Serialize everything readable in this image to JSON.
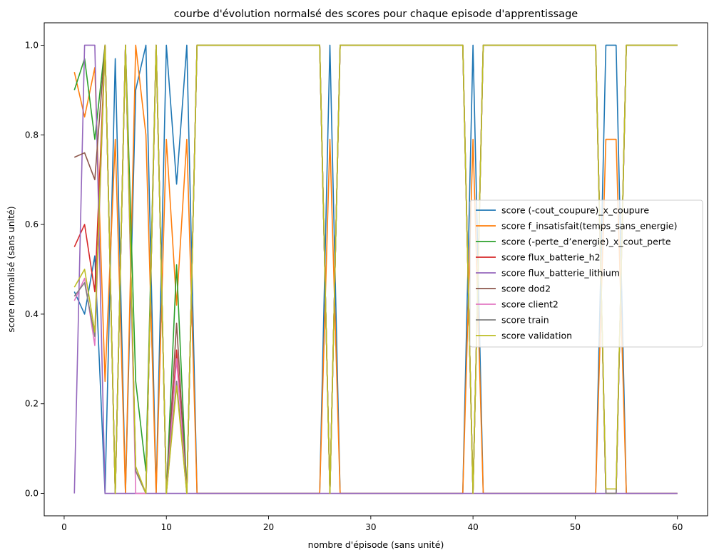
{
  "chart_data": {
    "type": "line",
    "title": "courbe d'évolution normalsé des scores pour chaque episode d'apprentissage",
    "xlabel": "nombre d'épisode (sans unité)",
    "ylabel": "score normalisé (sans unité)",
    "xlim": [
      -1.95,
      62.95
    ],
    "ylim": [
      -0.05,
      1.05
    ],
    "xticks": [
      0,
      10,
      20,
      30,
      40,
      50,
      60
    ],
    "yticks": [
      0.0,
      0.2,
      0.4,
      0.6,
      0.8,
      1.0
    ],
    "ytick_labels": [
      "0.0",
      "0.2",
      "0.4",
      "0.6",
      "0.8",
      "1.0"
    ],
    "grid": false,
    "legend_position": "center-right",
    "series": [
      {
        "name": "score (-cout_coupure)_x_coupure",
        "color": "#1f77b4",
        "points": [
          [
            1,
            0.45
          ],
          [
            2,
            0.4
          ],
          [
            3,
            0.53
          ],
          [
            4,
            0.0
          ],
          [
            5,
            0.97
          ],
          [
            6,
            0.0
          ],
          [
            7,
            0.9
          ],
          [
            8,
            1.0
          ],
          [
            9,
            0.0
          ],
          [
            10,
            1.0
          ],
          [
            11,
            0.69
          ],
          [
            12,
            1.0
          ],
          [
            13,
            0.0
          ],
          [
            25,
            0.0
          ],
          [
            26,
            1.0
          ],
          [
            27,
            0.0
          ],
          [
            39,
            0.0
          ],
          [
            40,
            1.0
          ],
          [
            41,
            0.0
          ],
          [
            52,
            0.0
          ],
          [
            53,
            1.0
          ],
          [
            54,
            1.0
          ],
          [
            55,
            0.0
          ],
          [
            60,
            0.0
          ]
        ]
      },
      {
        "name": "score f_insatisfait(temps_sans_energie)",
        "color": "#ff7f0e",
        "points": [
          [
            1,
            0.94
          ],
          [
            2,
            0.84
          ],
          [
            3,
            0.95
          ],
          [
            4,
            0.25
          ],
          [
            5,
            0.79
          ],
          [
            6,
            0.0
          ],
          [
            7,
            1.0
          ],
          [
            8,
            0.8
          ],
          [
            9,
            0.0
          ],
          [
            10,
            0.79
          ],
          [
            11,
            0.42
          ],
          [
            12,
            0.79
          ],
          [
            13,
            0.0
          ],
          [
            25,
            0.0
          ],
          [
            26,
            0.79
          ],
          [
            27,
            0.0
          ],
          [
            39,
            0.0
          ],
          [
            40,
            0.79
          ],
          [
            41,
            0.0
          ],
          [
            52,
            0.0
          ],
          [
            53,
            0.79
          ],
          [
            54,
            0.79
          ],
          [
            55,
            0.0
          ],
          [
            60,
            0.0
          ]
        ]
      },
      {
        "name": "score (-perte_d’energie)_x_cout_perte",
        "color": "#2ca02c",
        "points": [
          [
            1,
            0.9
          ],
          [
            2,
            0.97
          ],
          [
            3,
            0.79
          ],
          [
            4,
            1.0
          ],
          [
            5,
            0.0
          ],
          [
            6,
            1.0
          ],
          [
            7,
            0.25
          ],
          [
            8,
            0.05
          ],
          [
            9,
            1.0
          ],
          [
            10,
            0.0
          ],
          [
            11,
            0.51
          ],
          [
            12,
            0.0
          ],
          [
            13,
            1.0
          ],
          [
            25,
            1.0
          ],
          [
            26,
            0.0
          ],
          [
            27,
            1.0
          ],
          [
            39,
            1.0
          ],
          [
            40,
            0.0
          ],
          [
            41,
            1.0
          ],
          [
            52,
            1.0
          ],
          [
            53,
            0.0
          ],
          [
            54,
            0.0
          ],
          [
            55,
            1.0
          ],
          [
            60,
            1.0
          ]
        ]
      },
      {
        "name": "score flux_batterie_h2",
        "color": "#d62728",
        "points": [
          [
            1,
            0.55
          ],
          [
            2,
            0.6
          ],
          [
            3,
            0.45
          ],
          [
            4,
            1.0
          ],
          [
            5,
            0.0
          ],
          [
            6,
            1.0
          ],
          [
            7,
            0.05
          ],
          [
            8,
            0.0
          ],
          [
            9,
            1.0
          ],
          [
            10,
            0.0
          ],
          [
            11,
            0.32
          ],
          [
            12,
            0.0
          ],
          [
            13,
            1.0
          ],
          [
            25,
            1.0
          ],
          [
            26,
            0.0
          ],
          [
            27,
            1.0
          ],
          [
            39,
            1.0
          ],
          [
            40,
            0.0
          ],
          [
            41,
            1.0
          ],
          [
            52,
            1.0
          ],
          [
            53,
            0.0
          ],
          [
            54,
            0.0
          ],
          [
            55,
            1.0
          ],
          [
            60,
            1.0
          ]
        ]
      },
      {
        "name": "score flux_batterie_lithium",
        "color": "#9467bd",
        "points": [
          [
            1,
            0.0
          ],
          [
            2,
            1.0
          ],
          [
            3,
            1.0
          ],
          [
            4,
            0.0
          ],
          [
            60,
            0.0
          ]
        ]
      },
      {
        "name": "score dod2",
        "color": "#8c564b",
        "points": [
          [
            1,
            0.75
          ],
          [
            2,
            0.76
          ],
          [
            3,
            0.7
          ],
          [
            4,
            1.0
          ],
          [
            5,
            0.0
          ],
          [
            6,
            1.0
          ],
          [
            7,
            0.05
          ],
          [
            8,
            0.0
          ],
          [
            9,
            1.0
          ],
          [
            10,
            0.0
          ],
          [
            11,
            0.38
          ],
          [
            12,
            0.0
          ],
          [
            13,
            1.0
          ],
          [
            25,
            1.0
          ],
          [
            26,
            0.0
          ],
          [
            27,
            1.0
          ],
          [
            39,
            1.0
          ],
          [
            40,
            0.0
          ],
          [
            41,
            1.0
          ],
          [
            52,
            1.0
          ],
          [
            53,
            0.0
          ],
          [
            54,
            0.0
          ],
          [
            55,
            1.0
          ],
          [
            60,
            1.0
          ]
        ]
      },
      {
        "name": "score client2",
        "color": "#e377c2",
        "points": [
          [
            1,
            0.43
          ],
          [
            2,
            0.48
          ],
          [
            3,
            0.33
          ],
          [
            4,
            1.0
          ],
          [
            5,
            0.0
          ],
          [
            6,
            1.0
          ],
          [
            7,
            0.0
          ],
          [
            8,
            0.0
          ],
          [
            9,
            1.0
          ],
          [
            10,
            0.0
          ],
          [
            11,
            0.3
          ],
          [
            12,
            0.0
          ],
          [
            13,
            1.0
          ],
          [
            25,
            1.0
          ],
          [
            26,
            0.0
          ],
          [
            27,
            1.0
          ],
          [
            39,
            1.0
          ],
          [
            40,
            0.0
          ],
          [
            41,
            1.0
          ],
          [
            52,
            1.0
          ],
          [
            53,
            0.0
          ],
          [
            54,
            0.0
          ],
          [
            55,
            1.0
          ],
          [
            60,
            1.0
          ]
        ]
      },
      {
        "name": "score train",
        "color": "#7f7f7f",
        "points": [
          [
            1,
            0.44
          ],
          [
            2,
            0.47
          ],
          [
            3,
            0.35
          ],
          [
            4,
            1.0
          ],
          [
            5,
            0.0
          ],
          [
            6,
            1.0
          ],
          [
            7,
            0.05
          ],
          [
            8,
            0.0
          ],
          [
            9,
            1.0
          ],
          [
            10,
            0.0
          ],
          [
            11,
            0.25
          ],
          [
            12,
            0.0
          ],
          [
            13,
            1.0
          ],
          [
            25,
            1.0
          ],
          [
            26,
            0.0
          ],
          [
            27,
            1.0
          ],
          [
            39,
            1.0
          ],
          [
            40,
            0.0
          ],
          [
            41,
            1.0
          ],
          [
            52,
            1.0
          ],
          [
            53,
            0.0
          ],
          [
            54,
            0.0
          ],
          [
            55,
            1.0
          ],
          [
            60,
            1.0
          ]
        ]
      },
      {
        "name": "score validation",
        "color": "#bcbd22",
        "points": [
          [
            1,
            0.46
          ],
          [
            2,
            0.5
          ],
          [
            3,
            0.36
          ],
          [
            4,
            1.0
          ],
          [
            5,
            0.0
          ],
          [
            6,
            1.0
          ],
          [
            7,
            0.06
          ],
          [
            8,
            0.0
          ],
          [
            9,
            1.0
          ],
          [
            10,
            0.0
          ],
          [
            11,
            0.24
          ],
          [
            12,
            0.0
          ],
          [
            13,
            1.0
          ],
          [
            25,
            1.0
          ],
          [
            26,
            0.0
          ],
          [
            27,
            1.0
          ],
          [
            39,
            1.0
          ],
          [
            40,
            0.0
          ],
          [
            41,
            1.0
          ],
          [
            52,
            1.0
          ],
          [
            53,
            0.01
          ],
          [
            54,
            0.01
          ],
          [
            55,
            1.0
          ],
          [
            60,
            1.0
          ]
        ]
      }
    ]
  }
}
